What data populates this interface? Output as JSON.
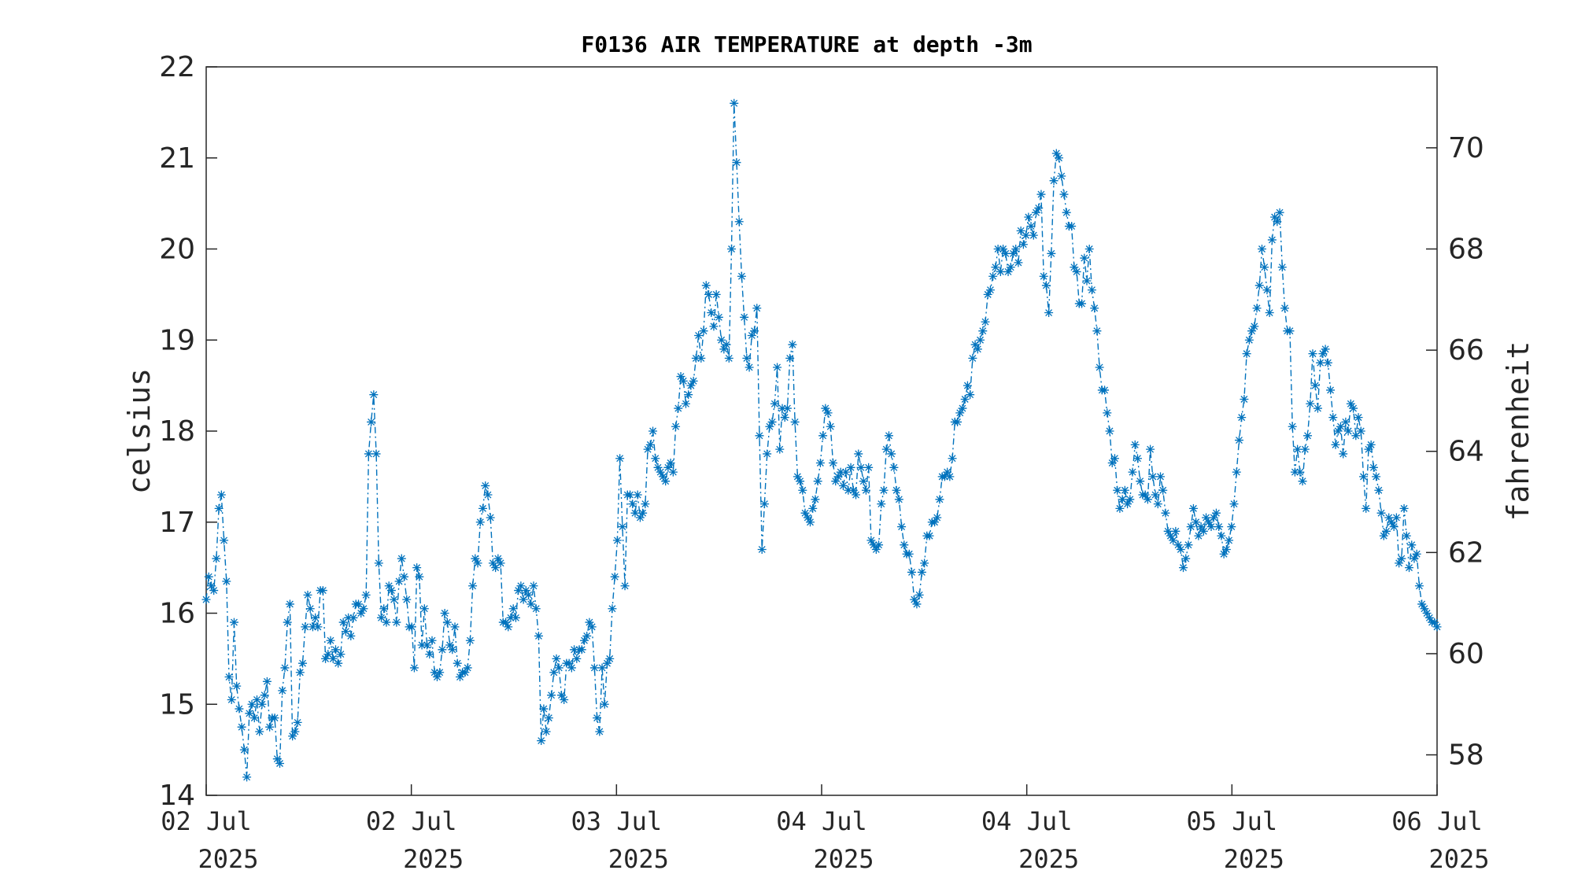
{
  "chart_data": {
    "type": "line",
    "title": "F0136 AIR TEMPERATURE at depth -3m",
    "ylabel": "celsius",
    "y2label": "fahrenheit",
    "ylim": [
      14,
      22
    ],
    "yticks": [
      "14",
      "15",
      "16",
      "17",
      "18",
      "19",
      "20",
      "21",
      "22"
    ],
    "y2lim": [
      57.2,
      71.6
    ],
    "y2ticks": [
      "58",
      "60",
      "62",
      "64",
      "66",
      "68",
      "70"
    ],
    "xlim": [
      "2025-07-02 00:00",
      "2025-07-06 00:00"
    ],
    "xticks": [
      {
        "day": "02 Jul",
        "year": "2025"
      },
      {
        "day": "02 Jul",
        "year": "2025"
      },
      {
        "day": "03 Jul",
        "year": "2025"
      },
      {
        "day": "04 Jul",
        "year": "2025"
      },
      {
        "day": "04 Jul",
        "year": "2025"
      },
      {
        "day": "05 Jul",
        "year": "2025"
      },
      {
        "day": "06 Jul",
        "year": "2025"
      }
    ],
    "marker": "asterisk",
    "line_style": "dash-dot",
    "color": "#0072BD",
    "grid": false,
    "series": [
      {
        "values": [
          16.15,
          16.4,
          16.3,
          16.25,
          16.6,
          17.15,
          17.3,
          16.8,
          16.35,
          15.3,
          15.05,
          15.9,
          15.2,
          14.95,
          14.75,
          14.5,
          14.2,
          14.9,
          15.0,
          14.85,
          15.05,
          14.7,
          15.0,
          15.1,
          15.25,
          14.75,
          14.85,
          14.85,
          14.4,
          14.35,
          15.15,
          15.4,
          15.9,
          16.1,
          14.65,
          14.7,
          14.8,
          15.35,
          15.45,
          15.85,
          16.2,
          16.05,
          15.85,
          15.95,
          15.85,
          16.25,
          16.25,
          15.5,
          15.55,
          15.7,
          15.5,
          15.6,
          15.45,
          15.55,
          15.9,
          15.8,
          15.95,
          15.75,
          15.95,
          16.1,
          16.1,
          16.0,
          16.05,
          16.2,
          17.75,
          18.1,
          18.4,
          17.75,
          16.55,
          15.95,
          16.05,
          15.9,
          16.3,
          16.25,
          16.15,
          15.9,
          16.35,
          16.6,
          16.4,
          16.15,
          15.85,
          15.85,
          15.4,
          16.5,
          16.4,
          15.65,
          16.05,
          15.65,
          15.55,
          15.7,
          15.35,
          15.3,
          15.35,
          15.6,
          16.0,
          15.9,
          15.65,
          15.6,
          15.85,
          15.45,
          15.3,
          15.35,
          15.35,
          15.4,
          15.7,
          16.3,
          16.6,
          16.55,
          17.0,
          17.15,
          17.4,
          17.3,
          17.05,
          16.55,
          16.5,
          16.6,
          16.55,
          15.9,
          15.9,
          15.85,
          15.95,
          16.05,
          15.95,
          16.25,
          16.3,
          16.15,
          16.25,
          16.2,
          16.1,
          16.3,
          16.05,
          15.75,
          14.6,
          14.95,
          14.7,
          14.85,
          15.1,
          15.35,
          15.5,
          15.4,
          15.1,
          15.05,
          15.45,
          15.45,
          15.4,
          15.6,
          15.5,
          15.6,
          15.6,
          15.7,
          15.75,
          15.9,
          15.85,
          15.4,
          14.85,
          14.7,
          15.4,
          15.0,
          15.45,
          15.5,
          16.05,
          16.4,
          16.8,
          17.7,
          16.95,
          16.3,
          17.3,
          17.3,
          17.2,
          17.1,
          17.3,
          17.05,
          17.1,
          17.2,
          17.8,
          17.85,
          18.0,
          17.7,
          17.6,
          17.55,
          17.5,
          17.45,
          17.6,
          17.65,
          17.55,
          18.05,
          18.25,
          18.6,
          18.55,
          18.3,
          18.4,
          18.5,
          18.55,
          18.8,
          19.05,
          18.8,
          19.1,
          19.6,
          19.5,
          19.3,
          19.15,
          19.5,
          19.25,
          19.0,
          18.9,
          18.95,
          18.8,
          20.0,
          21.6,
          20.95,
          20.3,
          19.7,
          19.25,
          18.8,
          18.7,
          19.05,
          19.1,
          19.35,
          17.95,
          16.7,
          17.2,
          17.75,
          18.05,
          18.1,
          18.3,
          18.7,
          17.8,
          18.25,
          18.15,
          18.25,
          18.8,
          18.95,
          18.1,
          17.5,
          17.45,
          17.35,
          17.1,
          17.05,
          17.0,
          17.15,
          17.25,
          17.45,
          17.65,
          17.95,
          18.25,
          18.2,
          18.05,
          17.65,
          17.45,
          17.5,
          17.55,
          17.4,
          17.55,
          17.35,
          17.6,
          17.35,
          17.3,
          17.75,
          17.6,
          17.45,
          17.35,
          17.6,
          16.8,
          16.75,
          16.7,
          16.75,
          17.2,
          17.35,
          17.8,
          17.95,
          17.75,
          17.6,
          17.35,
          17.25,
          16.95,
          16.75,
          16.65,
          16.65,
          16.45,
          16.15,
          16.1,
          16.2,
          16.45,
          16.55,
          16.85,
          16.85,
          17.0,
          17.0,
          17.05,
          17.25,
          17.5,
          17.5,
          17.55,
          17.5,
          17.7,
          18.1,
          18.1,
          18.2,
          18.25,
          18.35,
          18.5,
          18.4,
          18.8,
          18.95,
          18.9,
          19.0,
          19.1,
          19.2,
          19.5,
          19.55,
          19.7,
          19.8,
          20.0,
          19.75,
          20.0,
          19.95,
          19.75,
          19.8,
          19.95,
          20.0,
          19.85,
          20.2,
          20.05,
          20.15,
          20.35,
          20.25,
          20.15,
          20.4,
          20.45,
          20.6,
          19.7,
          19.6,
          19.3,
          19.95,
          20.75,
          21.05,
          21.0,
          20.8,
          20.6,
          20.4,
          20.25,
          20.25,
          19.8,
          19.75,
          19.4,
          19.4,
          19.9,
          19.65,
          20.0,
          19.55,
          19.35,
          19.1,
          18.7,
          18.45,
          18.45,
          18.2,
          18.0,
          17.65,
          17.7,
          17.35,
          17.15,
          17.25,
          17.35,
          17.2,
          17.25,
          17.55,
          17.85,
          17.7,
          17.45,
          17.3,
          17.3,
          17.25,
          17.8,
          17.5,
          17.3,
          17.2,
          17.5,
          17.35,
          17.1,
          16.9,
          16.85,
          16.8,
          16.9,
          16.75,
          16.7,
          16.5,
          16.6,
          16.75,
          16.95,
          17.15,
          17.0,
          16.85,
          16.95,
          16.9,
          17.05,
          17.0,
          16.95,
          17.05,
          17.1,
          16.95,
          16.85,
          16.65,
          16.7,
          16.8,
          16.95,
          17.2,
          17.55,
          17.9,
          18.15,
          18.35,
          18.85,
          19.0,
          19.1,
          19.15,
          19.35,
          19.6,
          20.0,
          19.8,
          19.55,
          19.3,
          20.1,
          20.35,
          20.3,
          20.4,
          19.8,
          19.35,
          19.1,
          19.1,
          18.05,
          17.55,
          17.8,
          17.55,
          17.45,
          17.8,
          17.95,
          18.3,
          18.85,
          18.5,
          18.25,
          18.75,
          18.85,
          18.9,
          18.75,
          18.45,
          18.15,
          17.85,
          18.0,
          18.05,
          17.75,
          18.1,
          18.0,
          18.3,
          18.25,
          17.95,
          18.15,
          18.0,
          17.5,
          17.15,
          17.8,
          17.85,
          17.6,
          17.5,
          17.35,
          17.1,
          16.85,
          16.9,
          17.05,
          17.0,
          16.95,
          17.05,
          16.55,
          16.6,
          17.15,
          16.85,
          16.5,
          16.75,
          16.6,
          16.65,
          16.3,
          16.1,
          16.05,
          16.0,
          15.95,
          15.9,
          15.9,
          15.85
        ]
      }
    ]
  }
}
